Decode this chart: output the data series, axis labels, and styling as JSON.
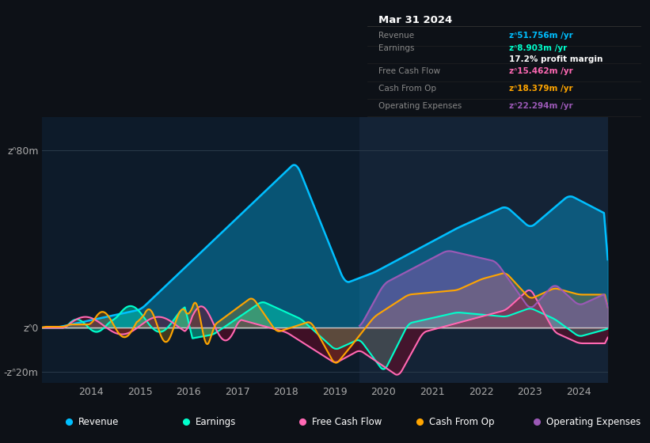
{
  "bg_color": "#0d1117",
  "plot_bg_color": "#0d1b2a",
  "grid_color": "#2a3a4a",
  "zero_line_color": "#cccccc",
  "ylim": [
    -25,
    95
  ],
  "yticks": [
    -20,
    0,
    80
  ],
  "ytick_labels": [
    "-zᐢ20m",
    "zᐢ0",
    "zᐢ80m"
  ],
  "xlim_start": 2013.0,
  "xlim_end": 2024.6,
  "xticks": [
    2014,
    2015,
    2016,
    2017,
    2018,
    2019,
    2020,
    2021,
    2022,
    2023,
    2024
  ],
  "highlight_x_start": 2019.5,
  "highlight_x_end": 2024.6,
  "revenue_color": "#00bfff",
  "earnings_color": "#00ffcc",
  "fcf_color": "#ff69b4",
  "cashfromop_color": "#ffa500",
  "opex_color": "#9b59b6",
  "info_box": {
    "title": "Mar 31 2024",
    "revenue_label": "Revenue",
    "revenue_value": "zᐢ51.756m /yr",
    "earnings_label": "Earnings",
    "earnings_value": "zᐢ8.903m /yr",
    "margin_text": "17.2% profit margin",
    "fcf_label": "Free Cash Flow",
    "fcf_value": "zᐢ15.462m /yr",
    "cashop_label": "Cash From Op",
    "cashop_value": "zᐢ18.379m /yr",
    "opex_label": "Operating Expenses",
    "opex_value": "zᐢ22.294m /yr"
  },
  "legend": [
    {
      "label": "Revenue",
      "color": "#00bfff"
    },
    {
      "label": "Earnings",
      "color": "#00ffcc"
    },
    {
      "label": "Free Cash Flow",
      "color": "#ff69b4"
    },
    {
      "label": "Cash From Op",
      "color": "#ffa500"
    },
    {
      "label": "Operating Expenses",
      "color": "#9b59b6"
    }
  ]
}
